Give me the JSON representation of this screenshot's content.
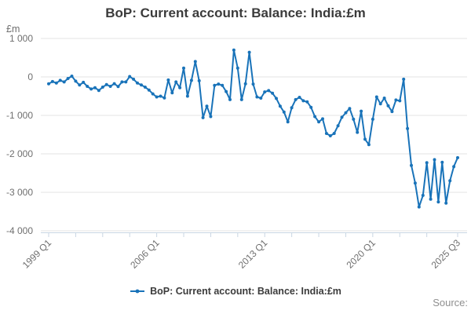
{
  "title": "BoP: Current account: Balance: India:£m",
  "y_axis_unit": "£m",
  "source_label": "Source:",
  "legend": {
    "label": "BoP: Current account: Balance: India:£m"
  },
  "colors": {
    "line": "#1973b9",
    "grid": "#e3e3e3",
    "axis": "#c9d6e3",
    "tick_text": "#6f6f6f",
    "title_text": "#3b3b3b",
    "source_text": "#8f8f8f"
  },
  "chart_data": {
    "type": "line",
    "title": "BoP: Current account: Balance: India:£m",
    "ylabel": "£m",
    "x_start": "1999 Q1",
    "x_end": "2025 Q3",
    "frequency": "quarterly",
    "grid": true,
    "legend_position": "bottom",
    "ylim": [
      -4000,
      1000
    ],
    "y_ticks": [
      {
        "value": 1000,
        "label": "1 000"
      },
      {
        "value": 0,
        "label": "0"
      },
      {
        "value": -1000,
        "label": "-1 000"
      },
      {
        "value": -2000,
        "label": "-2 000"
      },
      {
        "value": -3000,
        "label": "-3 000"
      },
      {
        "value": -4000,
        "label": "-4 000"
      }
    ],
    "x_tick_labels": [
      {
        "label": "1999 Q1",
        "index": 0
      },
      {
        "label": "2006 Q1",
        "index": 28
      },
      {
        "label": "2013 Q1",
        "index": 56
      },
      {
        "label": "2020 Q1",
        "index": 84
      },
      {
        "label": "2025 Q3",
        "index": 106
      }
    ],
    "minor_tick_indices": [
      0,
      7,
      14,
      21,
      28,
      35,
      42,
      49,
      56,
      63,
      70,
      77,
      84,
      91,
      98,
      106
    ],
    "series": [
      {
        "name": "BoP: Current account: Balance: India:£m",
        "values": [
          -180,
          -120,
          -160,
          -90,
          -130,
          -40,
          20,
          -110,
          -210,
          -140,
          -245,
          -315,
          -280,
          -350,
          -265,
          -200,
          -245,
          -175,
          -250,
          -130,
          -130,
          10,
          -60,
          -160,
          -210,
          -265,
          -340,
          -440,
          -520,
          -500,
          -545,
          -80,
          -415,
          -130,
          -280,
          230,
          -500,
          -90,
          400,
          -100,
          -1060,
          -760,
          -1030,
          -220,
          -185,
          -220,
          -380,
          -590,
          700,
          230,
          -590,
          -180,
          640,
          -185,
          -520,
          -550,
          -390,
          -355,
          -425,
          -560,
          -760,
          -915,
          -1170,
          -800,
          -590,
          -530,
          -620,
          -650,
          -790,
          -1030,
          -1170,
          -1090,
          -1470,
          -1530,
          -1470,
          -1270,
          -1050,
          -930,
          -820,
          -1100,
          -1440,
          -890,
          -1620,
          -1760,
          -1100,
          -520,
          -700,
          -550,
          -750,
          -900,
          -600,
          -620,
          -60,
          -1340,
          -2300,
          -2760,
          -3380,
          -3080,
          -2230,
          -3180,
          -2150,
          -3250,
          -2220,
          -3280,
          -2700,
          -2330,
          -2100
        ]
      }
    ]
  }
}
